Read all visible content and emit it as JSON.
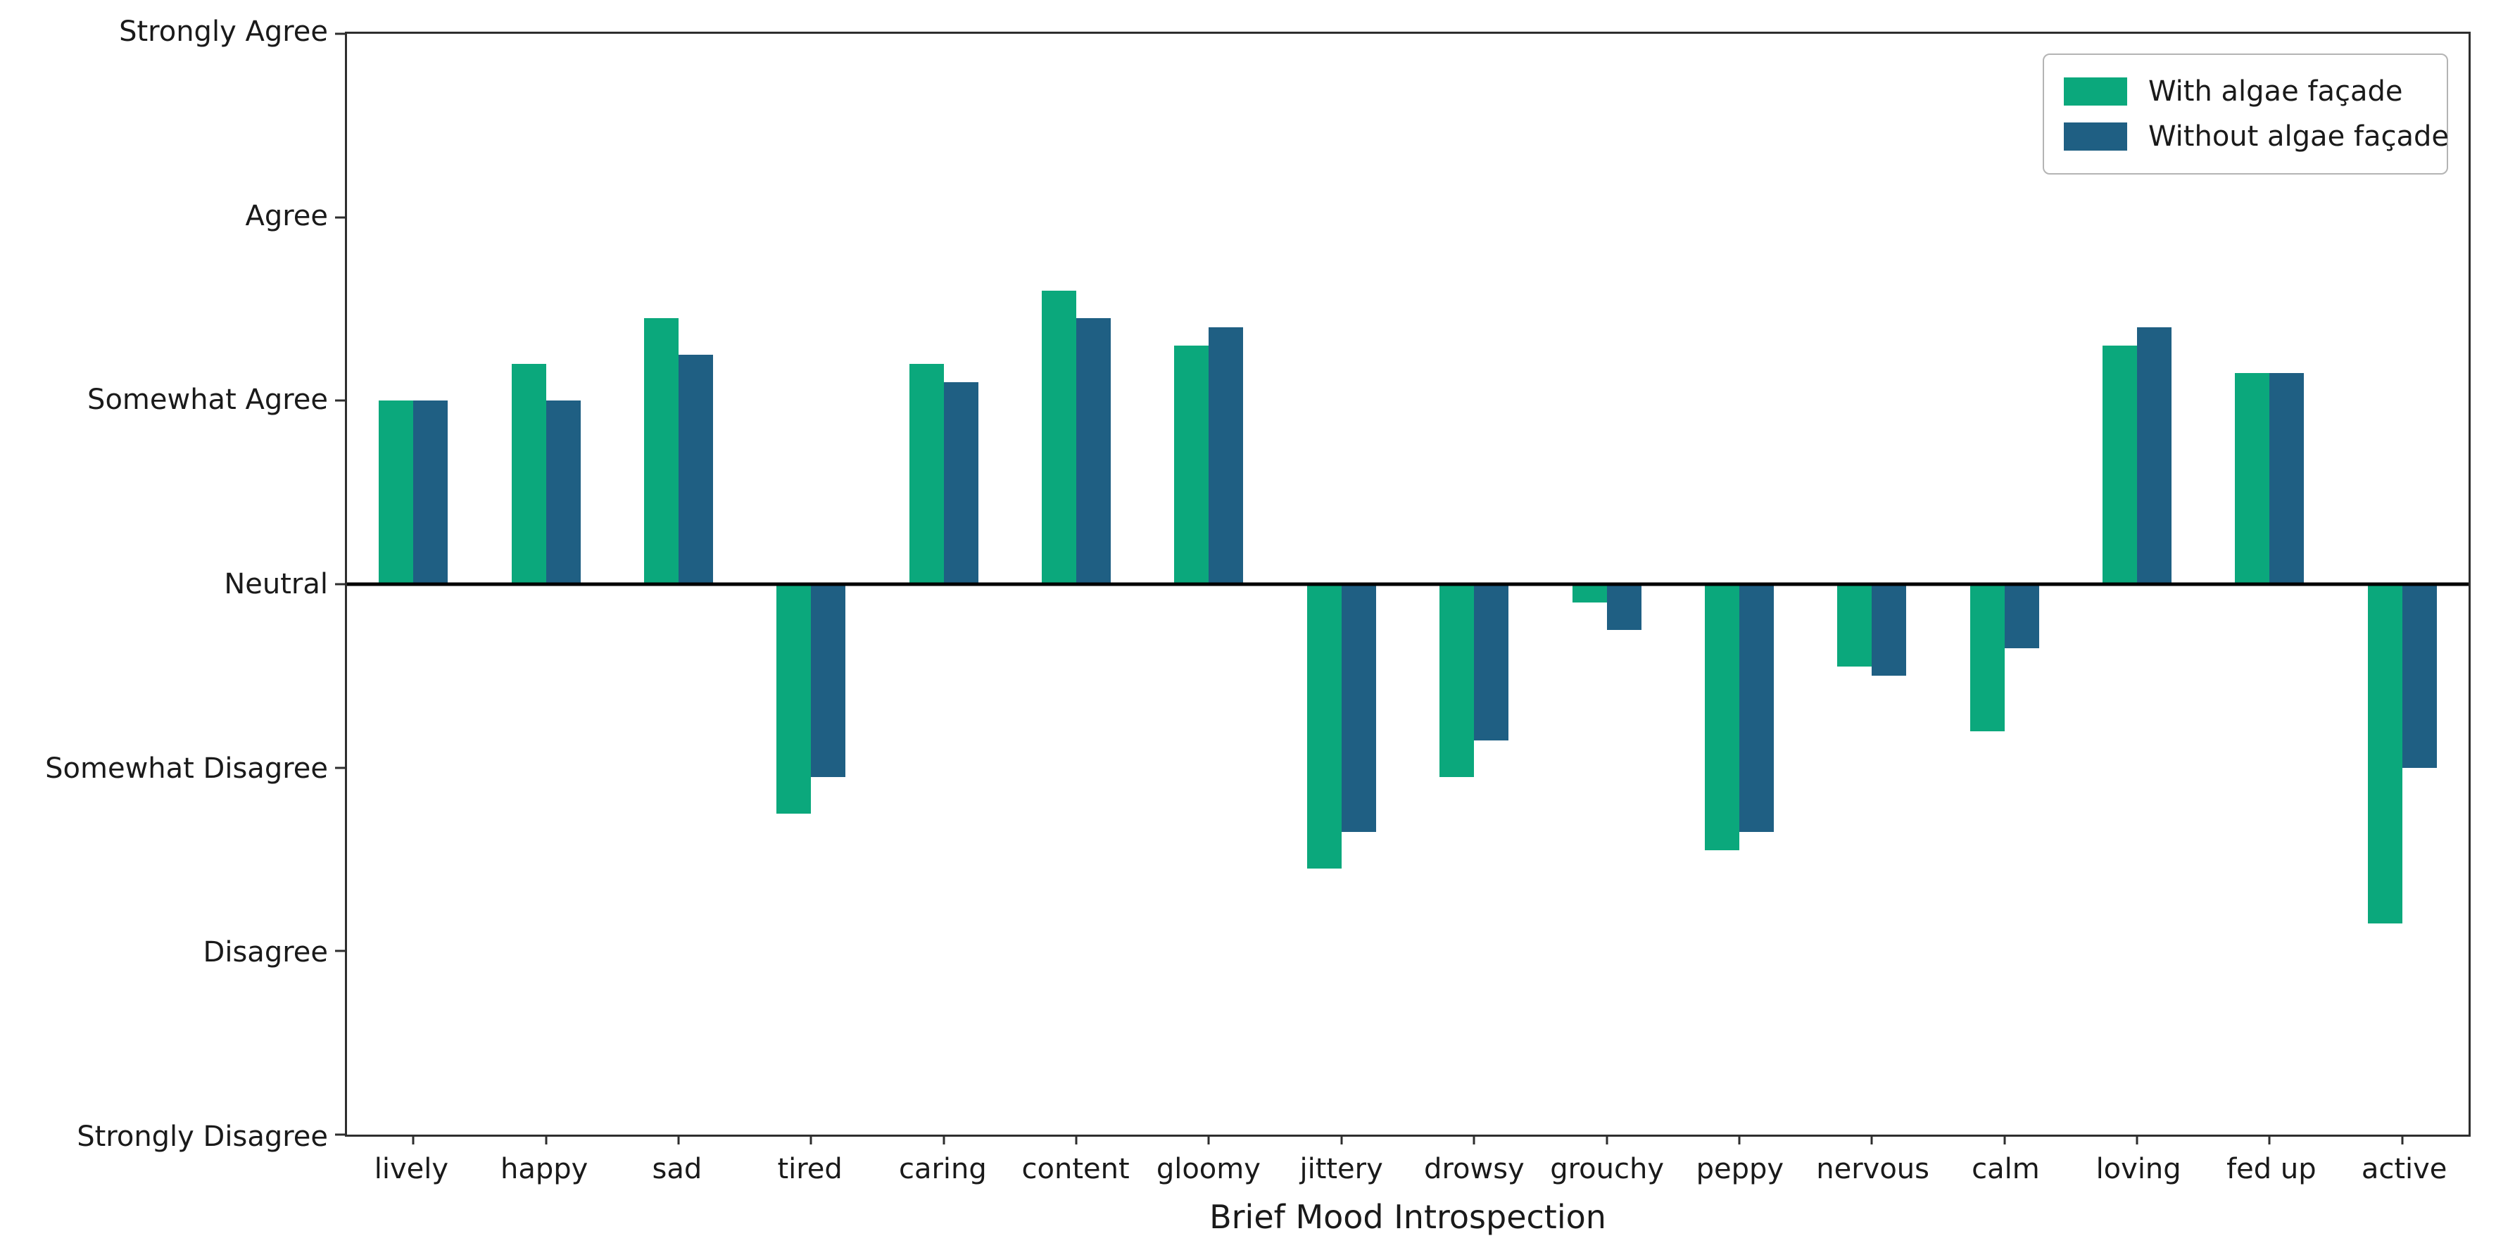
{
  "figure": {
    "xlabel": "Brief Mood Introspection"
  },
  "chart_data": {
    "type": "bar",
    "title": "",
    "xlabel": "Brief Mood Introspection",
    "ylabel": "",
    "ylim": [
      -3,
      3
    ],
    "grid": false,
    "zero_line": true,
    "legend_position": "upper right",
    "bar_width_fraction": 0.26,
    "categories": [
      "lively",
      "happy",
      "sad",
      "tired",
      "caring",
      "content",
      "gloomy",
      "jittery",
      "drowsy",
      "grouchy",
      "peppy",
      "nervous",
      "calm",
      "loving",
      "fed up",
      "active"
    ],
    "yticks": [
      {
        "label": "Strongly Agree",
        "value": 3
      },
      {
        "label": "Agree",
        "value": 2
      },
      {
        "label": "Somewhat Agree",
        "value": 1
      },
      {
        "label": "Neutral",
        "value": 0
      },
      {
        "label": "Somewhat Disagree",
        "value": -1
      },
      {
        "label": "Disagree",
        "value": -2
      },
      {
        "label": "Strongly Disagree",
        "value": -3
      }
    ],
    "series": [
      {
        "name": "With algae façade",
        "key": "with-algae-facade",
        "color": "#0ba87c",
        "values": [
          1.0,
          1.2,
          1.45,
          -1.25,
          1.2,
          1.6,
          1.3,
          -1.55,
          -1.05,
          -0.1,
          -1.45,
          -0.45,
          -0.8,
          1.3,
          1.15,
          -1.85
        ]
      },
      {
        "name": "Without algae façade",
        "key": "without-algae-facade",
        "color": "#1f5f83",
        "values": [
          1.0,
          1.0,
          1.25,
          -1.05,
          1.1,
          1.45,
          1.4,
          -1.35,
          -0.85,
          -0.25,
          -1.35,
          -0.5,
          -0.35,
          1.4,
          1.15,
          -1.0
        ]
      }
    ],
    "colors": {
      "axis_frame": "#2e2e2e",
      "zero_line": "#000000",
      "background": "#ffffff",
      "text": "#1a1a1a"
    }
  }
}
